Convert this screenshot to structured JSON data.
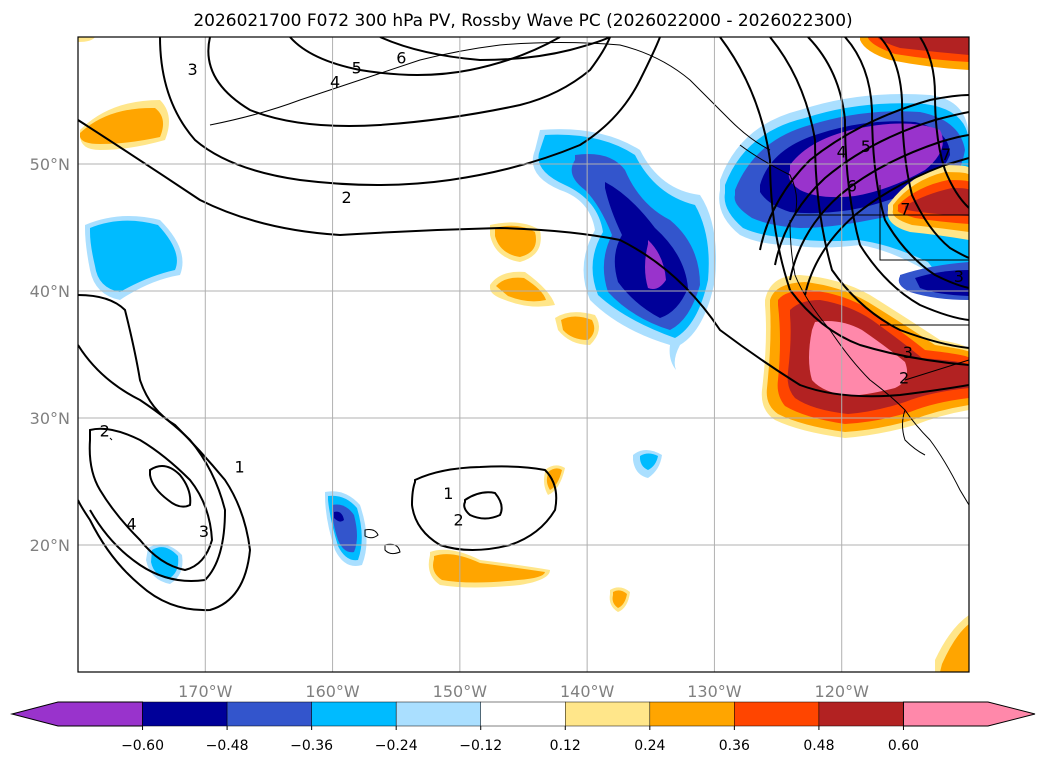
{
  "chart_data": {
    "type": "map-contour",
    "title": "2026021700 F072 300 hPa PV, Rossby Wave PC (2026022000 - 2026022300)",
    "x_ticks": [
      "170°W",
      "160°W",
      "150°W",
      "140°W",
      "130°W",
      "120°W"
    ],
    "x_tick_values": [
      -170,
      -160,
      -150,
      -140,
      -130,
      -120
    ],
    "y_ticks": [
      "50°N",
      "40°N",
      "30°N",
      "20°N"
    ],
    "y_tick_values": [
      50,
      40,
      30,
      20
    ],
    "lon_range": [
      -180,
      -110
    ],
    "lat_range": [
      10,
      60
    ],
    "grid": true,
    "colorbar": {
      "orientation": "horizontal",
      "extend": "both",
      "boundaries": [
        -0.6,
        -0.48,
        -0.36,
        -0.24,
        -0.12,
        0.12,
        0.24,
        0.36,
        0.48,
        0.6
      ],
      "tick_labels": [
        "−0.60",
        "−0.48",
        "−0.36",
        "−0.24",
        "−0.12",
        "0.12",
        "0.24",
        "0.36",
        "0.48",
        "0.60"
      ],
      "colors": [
        "#9933cc",
        "#000099",
        "#3355cc",
        "#00bbff",
        "#aadfff",
        "#ffffff",
        "#ffe68a",
        "#ffa500",
        "#ff4500",
        "#b22222",
        "#ff88aa"
      ]
    },
    "contour_labels": [
      {
        "text": "3",
        "lon": -171,
        "lat": 57.5
      },
      {
        "text": "5",
        "lon": -158.1,
        "lat": 57.6
      },
      {
        "text": "4",
        "lon": -159.8,
        "lat": 56.5
      },
      {
        "text": "6",
        "lon": -154.6,
        "lat": 58.4
      },
      {
        "text": "2",
        "lon": -158.9,
        "lat": 47.4
      },
      {
        "text": "1",
        "lon": -150.9,
        "lat": 24.1
      },
      {
        "text": "2",
        "lon": -150.1,
        "lat": 22
      },
      {
        "text": "2",
        "lon": -177.9,
        "lat": 29
      },
      {
        "text": "1",
        "lon": -167.3,
        "lat": 26.2
      },
      {
        "text": "4",
        "lon": -175.8,
        "lat": 21.7
      },
      {
        "text": "3",
        "lon": -170.1,
        "lat": 21.1
      },
      {
        "text": "7",
        "lon": -111.8,
        "lat": 50.8
      },
      {
        "text": "7",
        "lon": -115,
        "lat": 46.5
      },
      {
        "text": "3",
        "lon": -110.8,
        "lat": 41.2
      },
      {
        "text": "3",
        "lon": -114.8,
        "lat": 35.2
      },
      {
        "text": "2",
        "lon": -115.1,
        "lat": 33.2
      },
      {
        "text": "4",
        "lon": -120,
        "lat": 51
      },
      {
        "text": "5",
        "lon": -118.1,
        "lat": 51.4
      },
      {
        "text": "6",
        "lon": -119.2,
        "lat": 48.3
      }
    ]
  }
}
